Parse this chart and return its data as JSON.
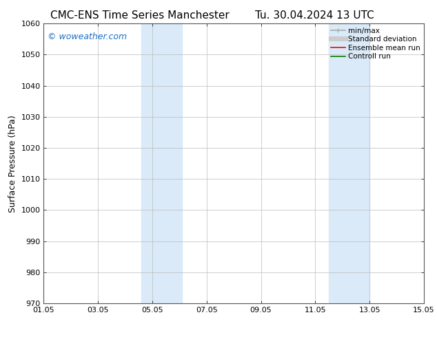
{
  "title_left": "CMC-ENS Time Series Manchester",
  "title_right": "Tu. 30.04.2024 13 UTC",
  "ylabel": "Surface Pressure (hPa)",
  "xlim": [
    0,
    14
  ],
  "ylim": [
    970,
    1060
  ],
  "yticks": [
    970,
    980,
    990,
    1000,
    1010,
    1020,
    1030,
    1040,
    1050,
    1060
  ],
  "xtick_labels": [
    "01.05",
    "03.05",
    "05.05",
    "07.05",
    "09.05",
    "11.05",
    "13.05",
    "15.05"
  ],
  "xtick_positions": [
    0,
    2,
    4,
    6,
    8,
    10,
    12,
    14
  ],
  "shaded_bands": [
    {
      "xmin": 3.6,
      "xmax": 5.1
    },
    {
      "xmin": 10.5,
      "xmax": 12.0
    }
  ],
  "shaded_color": "#daeaf8",
  "background_color": "#ffffff",
  "watermark_text": "© woweather.com",
  "watermark_color": "#1a6fc4",
  "watermark_fontsize": 9,
  "legend_items": [
    {
      "label": "min/max",
      "color": "#aaaaaa",
      "lw": 1.2
    },
    {
      "label": "Standard deviation",
      "color": "#cccccc",
      "lw": 5
    },
    {
      "label": "Ensemble mean run",
      "color": "#ff0000",
      "lw": 1.2
    },
    {
      "label": "Controll run",
      "color": "#007700",
      "lw": 1.2
    }
  ],
  "grid_color": "#bbbbbb",
  "title_fontsize": 11,
  "label_fontsize": 9,
  "tick_fontsize": 8,
  "legend_fontsize": 7.5
}
